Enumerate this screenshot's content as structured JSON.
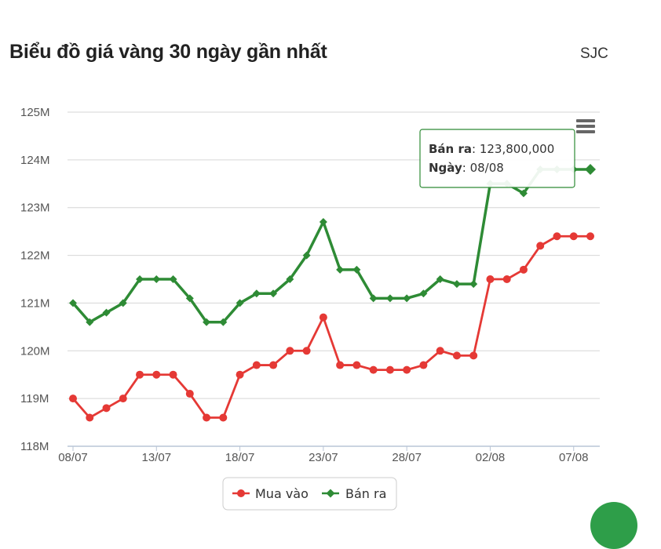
{
  "header": {
    "title": "Biểu đồ giá vàng 30 ngày gần nhất",
    "brand": "SJC"
  },
  "colors": {
    "buy": "#e53935",
    "sell": "#2e8b35",
    "grid": "#d6d6d6",
    "tooltip_border": "#2e8b35"
  },
  "tooltip": {
    "series_label": "Bán ra",
    "value": "123,800,000",
    "date_label": "Ngày",
    "date": "08/08"
  },
  "menu_icon": "hamburger-icon",
  "chart_data": {
    "type": "line",
    "title": "Biểu đồ giá vàng 30 ngày gần nhất",
    "xlabel": "",
    "ylabel": "",
    "ylim": [
      118000000,
      125000000
    ],
    "y_ticks": [
      {
        "value": 118000000,
        "label": "118M"
      },
      {
        "value": 119000000,
        "label": "119M"
      },
      {
        "value": 120000000,
        "label": "120M"
      },
      {
        "value": 121000000,
        "label": "121M"
      },
      {
        "value": 122000000,
        "label": "122M"
      },
      {
        "value": 123000000,
        "label": "123M"
      },
      {
        "value": 124000000,
        "label": "124M"
      },
      {
        "value": 125000000,
        "label": "125M"
      }
    ],
    "x": [
      "08/07",
      "09/07",
      "10/07",
      "11/07",
      "12/07",
      "13/07",
      "14/07",
      "15/07",
      "16/07",
      "17/07",
      "18/07",
      "19/07",
      "20/07",
      "21/07",
      "22/07",
      "23/07",
      "24/07",
      "25/07",
      "26/07",
      "27/07",
      "28/07",
      "29/07",
      "30/07",
      "31/07",
      "01/08",
      "02/08",
      "03/08",
      "04/08",
      "05/08",
      "06/08",
      "07/08",
      "08/08"
    ],
    "x_tick_labels": [
      "08/07",
      "13/07",
      "18/07",
      "23/07",
      "28/07",
      "02/08",
      "07/08"
    ],
    "legend_position": "bottom-center",
    "grid": true,
    "series": [
      {
        "name": "Mua vào",
        "values": [
          119000000,
          118600000,
          118800000,
          119000000,
          119500000,
          119500000,
          119500000,
          119100000,
          118600000,
          118600000,
          119500000,
          119700000,
          119700000,
          120000000,
          120000000,
          120700000,
          119700000,
          119700000,
          119600000,
          119600000,
          119600000,
          119700000,
          120000000,
          119900000,
          119900000,
          121500000,
          121500000,
          121700000,
          122200000,
          122400000,
          122400000,
          122400000
        ]
      },
      {
        "name": "Bán ra",
        "values": [
          121000000,
          120600000,
          120800000,
          121000000,
          121500000,
          121500000,
          121500000,
          121100000,
          120600000,
          120600000,
          121000000,
          121200000,
          121200000,
          121500000,
          122000000,
          122700000,
          121700000,
          121700000,
          121100000,
          121100000,
          121100000,
          121200000,
          121500000,
          121400000,
          121400000,
          123500000,
          123500000,
          123300000,
          123800000,
          123800000,
          123800000,
          123800000
        ]
      }
    ]
  }
}
